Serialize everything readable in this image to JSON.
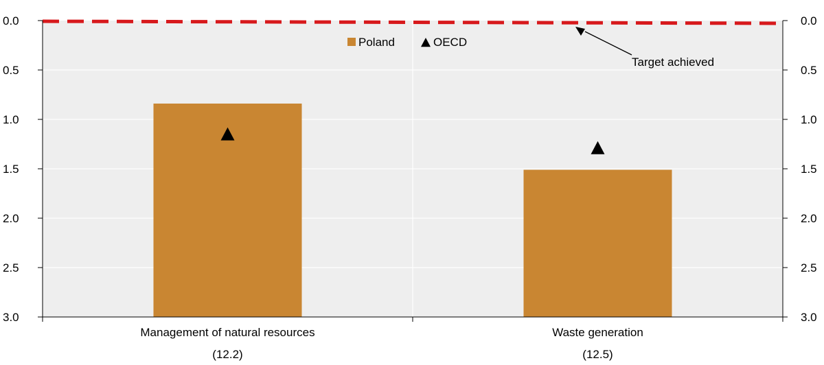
{
  "chart_data": {
    "type": "bar",
    "categories": [
      [
        "Management of natural resources",
        "(12.2)"
      ],
      [
        "Waste generation",
        "(12.5)"
      ]
    ],
    "series": [
      {
        "name": "Poland",
        "type": "bar",
        "color": "#c98632",
        "values": [
          0.84,
          1.51
        ]
      },
      {
        "name": "OECD",
        "type": "marker",
        "marker": "triangle",
        "color": "#000000",
        "values": [
          1.15,
          1.29
        ]
      }
    ],
    "reference_line": {
      "value": 0.0,
      "style": "dashed",
      "color": "#d7191c",
      "label": "Target achieved"
    },
    "yaxis": {
      "min": 0.0,
      "max": 3.0,
      "inverted": true,
      "ticks": [
        "0.0",
        "0.5",
        "1.0",
        "1.5",
        "2.0",
        "2.5",
        "3.0"
      ],
      "tick_values": [
        0,
        0.5,
        1.0,
        1.5,
        2.0,
        2.5,
        3.0
      ],
      "mirrored_right": true
    },
    "plot_background": "#eeeeee",
    "grid": true,
    "legend": {
      "placement": "top-center",
      "entries": [
        "Poland",
        "OECD"
      ]
    }
  }
}
